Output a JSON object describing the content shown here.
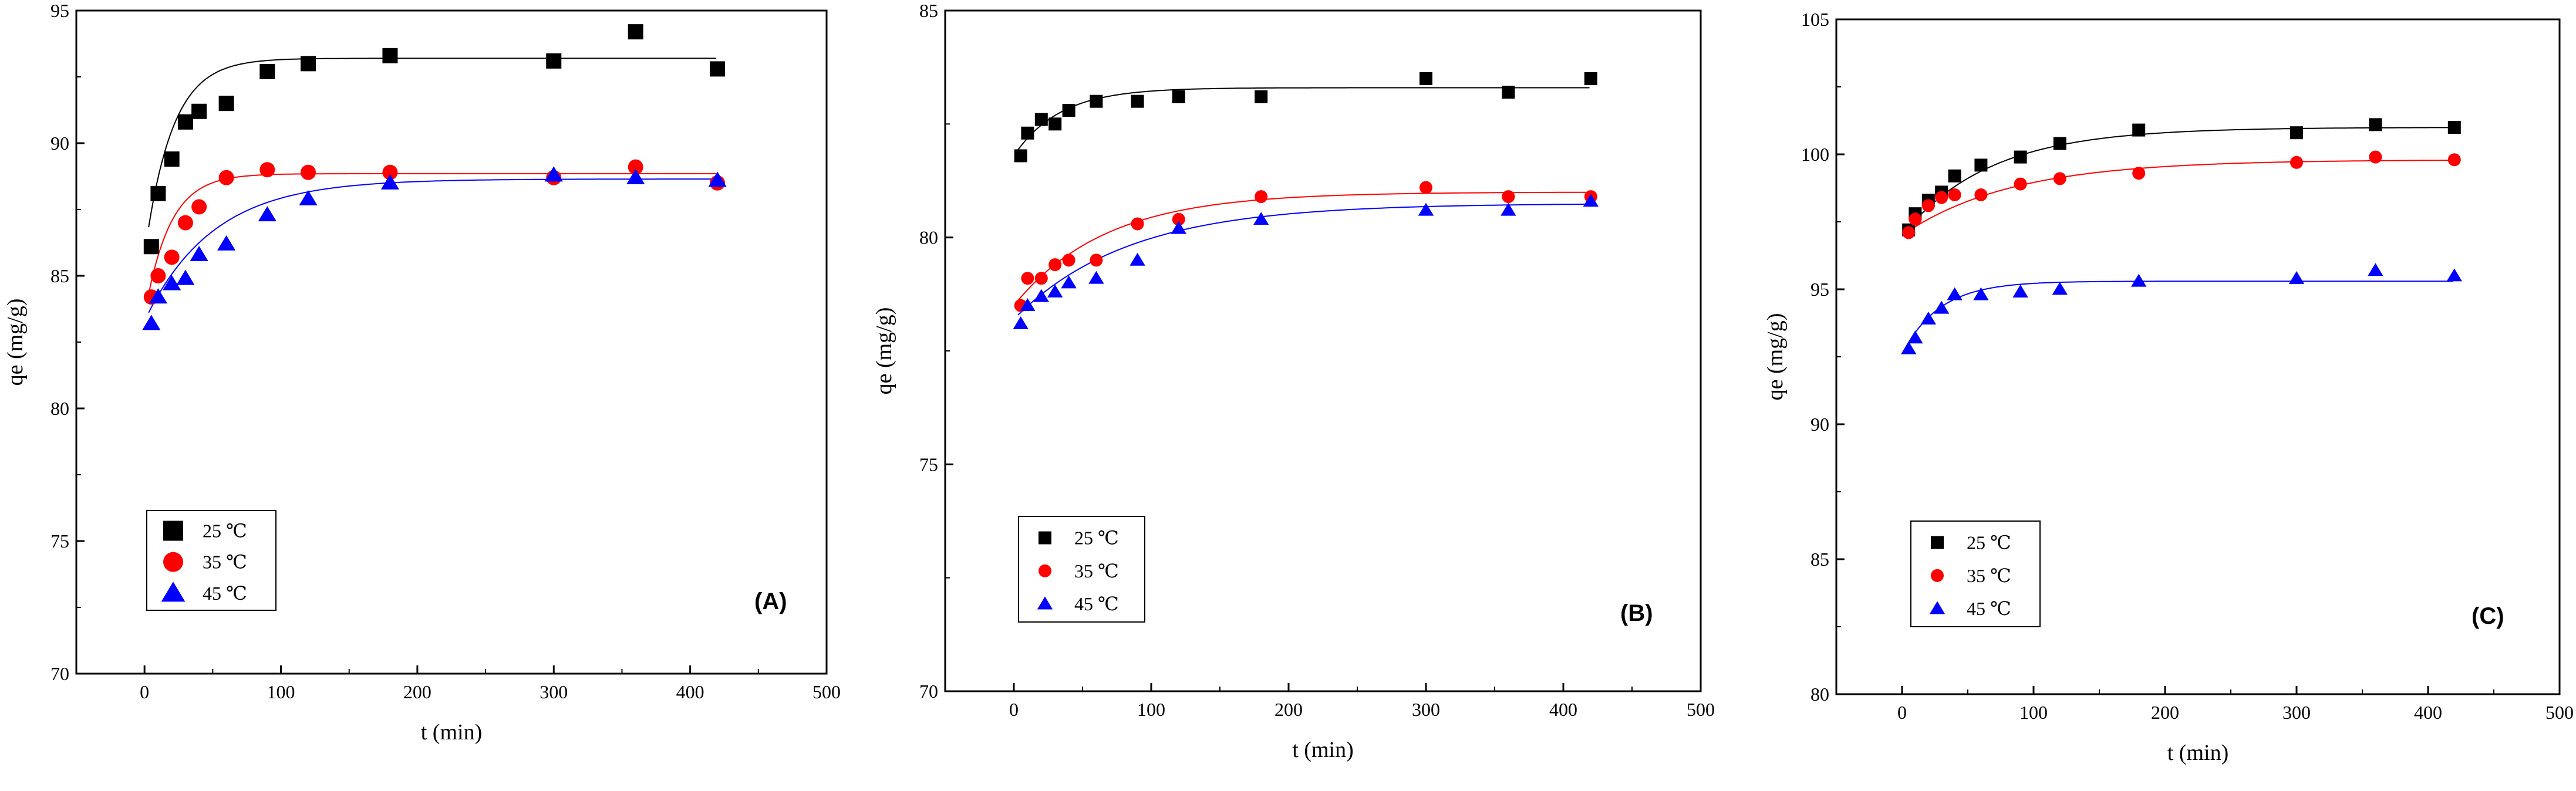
{
  "chart_data": [
    {
      "type": "scatter",
      "panel_label": "(A)",
      "xlabel": "t (min)",
      "ylabel": "qe (mg/g)",
      "xlim": [
        -50,
        500
      ],
      "ylim": [
        70,
        95
      ],
      "xticks": [
        0,
        100,
        200,
        300,
        400,
        500
      ],
      "yticks": [
        70,
        75,
        80,
        85,
        90,
        95
      ],
      "legend": "bottom-left",
      "series": [
        {
          "name": "25 ℃",
          "color": "#000000",
          "marker": "square",
          "x": [
            5,
            10,
            20,
            30,
            40,
            60,
            90,
            120,
            180,
            300,
            360,
            420
          ],
          "y": [
            86.1,
            88.1,
            89.4,
            90.8,
            91.2,
            91.5,
            92.7,
            93.0,
            93.3,
            93.1,
            94.2,
            92.8
          ],
          "fit": {
            "qe": 93.2,
            "q0": 85.8,
            "k": 0.05
          }
        },
        {
          "name": "35 ℃",
          "color": "#ff0000",
          "marker": "circle",
          "x": [
            5,
            10,
            20,
            30,
            40,
            60,
            90,
            120,
            180,
            300,
            360,
            420
          ],
          "y": [
            84.2,
            85.0,
            85.7,
            87.0,
            87.6,
            88.7,
            89.0,
            88.9,
            88.9,
            88.7,
            89.1,
            88.5
          ],
          "fit": {
            "qe": 88.85,
            "q0": 83.5,
            "k": 0.055
          }
        },
        {
          "name": "45 ℃",
          "color": "#0000ff",
          "marker": "triangle",
          "x": [
            5,
            10,
            20,
            30,
            40,
            60,
            90,
            120,
            180,
            300,
            360,
            420
          ],
          "y": [
            83.2,
            84.2,
            84.7,
            84.9,
            85.8,
            86.2,
            87.3,
            87.9,
            88.5,
            88.8,
            88.7,
            88.6
          ],
          "fit": {
            "qe": 88.65,
            "q0": 83.3,
            "k": 0.02
          }
        }
      ]
    },
    {
      "type": "scatter",
      "panel_label": "(B)",
      "xlabel": "t (min)",
      "ylabel": "qe (mg/g)",
      "xlim": [
        -50,
        500
      ],
      "ylim": [
        70,
        85
      ],
      "xticks": [
        0,
        100,
        200,
        300,
        400,
        500
      ],
      "yticks": [
        70,
        75,
        80,
        85
      ],
      "legend": "bottom-left",
      "series": [
        {
          "name": "25 ℃",
          "color": "#000000",
          "marker": "square",
          "x": [
            5,
            10,
            20,
            30,
            40,
            60,
            90,
            120,
            180,
            300,
            360,
            420
          ],
          "y": [
            81.8,
            82.3,
            82.6,
            82.5,
            82.8,
            83.0,
            83.0,
            83.1,
            83.1,
            83.5,
            83.2,
            83.5
          ],
          "fit": {
            "qe": 83.3,
            "q0": 81.8,
            "k": 0.03
          }
        },
        {
          "name": "35 ℃",
          "color": "#ff0000",
          "marker": "circle",
          "x": [
            5,
            10,
            20,
            30,
            40,
            60,
            90,
            120,
            180,
            300,
            360,
            420
          ],
          "y": [
            78.5,
            79.1,
            79.1,
            79.4,
            79.5,
            79.5,
            80.3,
            80.4,
            80.9,
            81.1,
            80.9,
            80.9
          ],
          "fit": {
            "qe": 81.0,
            "q0": 78.5,
            "k": 0.015
          }
        },
        {
          "name": "45 ℃",
          "color": "#0000ff",
          "marker": "triangle",
          "x": [
            5,
            10,
            20,
            30,
            40,
            60,
            90,
            120,
            180,
            300,
            360,
            420
          ],
          "y": [
            78.1,
            78.5,
            78.7,
            78.8,
            79.0,
            79.1,
            79.5,
            80.2,
            80.4,
            80.6,
            80.6,
            80.8
          ],
          "fit": {
            "qe": 80.75,
            "q0": 78.2,
            "k": 0.012
          }
        }
      ]
    },
    {
      "type": "scatter",
      "panel_label": "(C)",
      "xlabel": "t (min)",
      "ylabel": "qe (mg/g)",
      "xlim": [
        -50,
        500
      ],
      "ylim": [
        80,
        105
      ],
      "xticks": [
        0,
        100,
        200,
        300,
        400,
        500
      ],
      "yticks": [
        80,
        85,
        90,
        95,
        100,
        105
      ],
      "legend": "bottom-left",
      "series": [
        {
          "name": "25 ℃",
          "color": "#000000",
          "marker": "square",
          "x": [
            5,
            10,
            20,
            30,
            40,
            60,
            90,
            120,
            180,
            300,
            360,
            420
          ],
          "y": [
            97.2,
            97.8,
            98.3,
            98.6,
            99.2,
            99.6,
            99.9,
            100.4,
            100.9,
            100.8,
            101.1,
            101.0
          ],
          "fit": {
            "qe": 101.0,
            "q0": 97.0,
            "k": 0.015
          }
        },
        {
          "name": "35 ℃",
          "color": "#ff0000",
          "marker": "circle",
          "x": [
            5,
            10,
            20,
            30,
            40,
            60,
            90,
            120,
            180,
            300,
            360,
            420
          ],
          "y": [
            97.1,
            97.6,
            98.1,
            98.4,
            98.5,
            98.5,
            98.9,
            99.1,
            99.3,
            99.7,
            99.9,
            99.8
          ],
          "fit": {
            "qe": 99.8,
            "q0": 97.0,
            "k": 0.012
          }
        },
        {
          "name": "45 ℃",
          "color": "#0000ff",
          "marker": "triangle",
          "x": [
            5,
            10,
            20,
            30,
            40,
            60,
            90,
            120,
            180,
            300,
            360,
            420
          ],
          "y": [
            92.8,
            93.2,
            93.9,
            94.3,
            94.8,
            94.8,
            94.9,
            95.0,
            95.3,
            95.4,
            95.7,
            95.5
          ],
          "fit": {
            "qe": 95.3,
            "q0": 92.6,
            "k": 0.035
          }
        }
      ]
    }
  ]
}
